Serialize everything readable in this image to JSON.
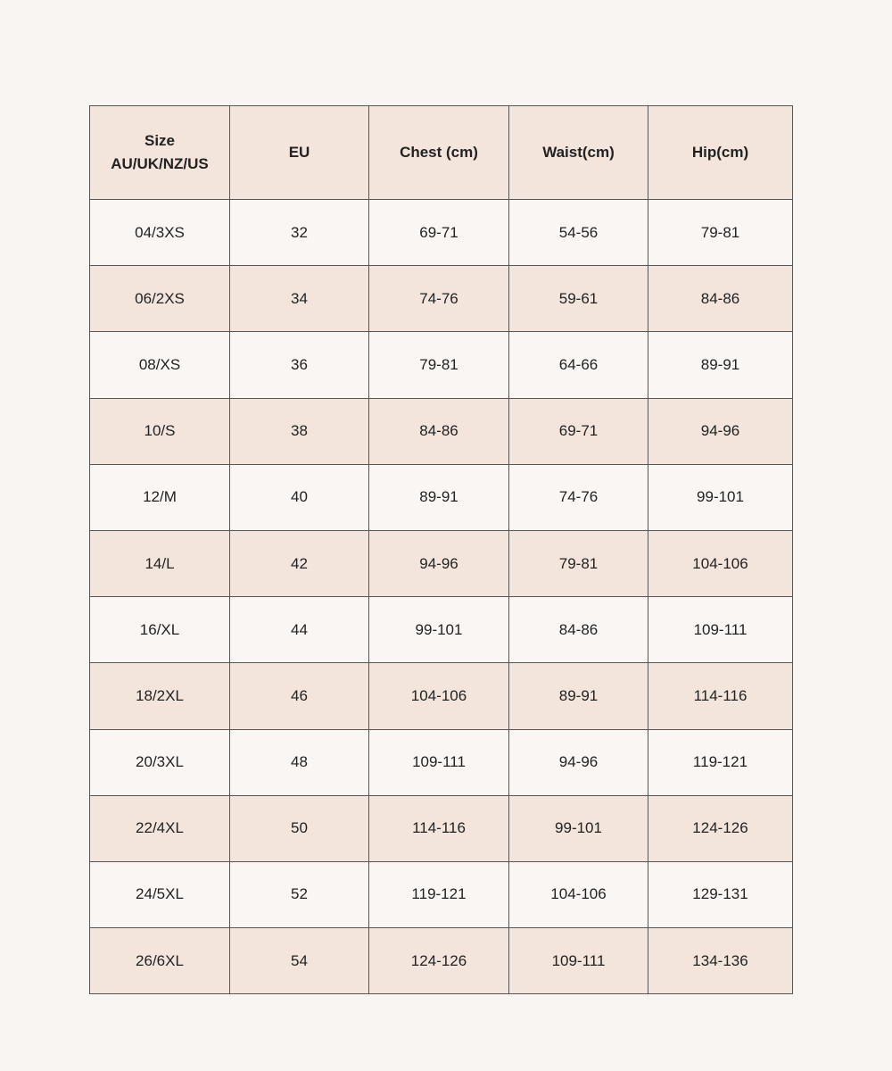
{
  "table": {
    "header": [
      "Size\nAU/UK/NZ/US",
      "EU",
      "Chest (cm)",
      "Waist(cm)",
      "Hip(cm)"
    ],
    "rows": [
      [
        "04/3XS",
        "32",
        "69-71",
        "54-56",
        "79-81"
      ],
      [
        "06/2XS",
        "34",
        "74-76",
        "59-61",
        "84-86"
      ],
      [
        "08/XS",
        "36",
        "79-81",
        "64-66",
        "89-91"
      ],
      [
        "10/S",
        "38",
        "84-86",
        "69-71",
        "94-96"
      ],
      [
        "12/M",
        "40",
        "89-91",
        "74-76",
        "99-101"
      ],
      [
        "14/L",
        "42",
        "94-96",
        "79-81",
        "104-106"
      ],
      [
        "16/XL",
        "44",
        "99-101",
        "84-86",
        "109-111"
      ],
      [
        "18/2XL",
        "46",
        "104-106",
        "89-91",
        "114-116"
      ],
      [
        "20/3XL",
        "48",
        "109-111",
        "94-96",
        "119-121"
      ],
      [
        "22/4XL",
        "50",
        "114-116",
        "99-101",
        "124-126"
      ],
      [
        "24/5XL",
        "52",
        "119-121",
        "104-106",
        "129-131"
      ],
      [
        "26/6XL",
        "54",
        "124-126",
        "109-111",
        "134-136"
      ]
    ]
  }
}
